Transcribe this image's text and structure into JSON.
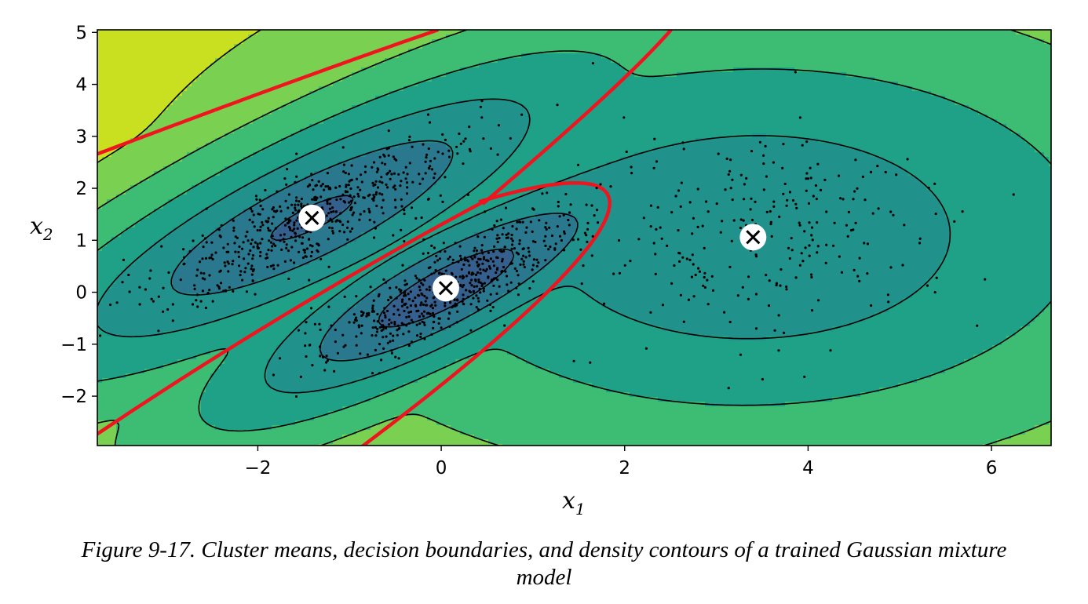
{
  "chart_data": {
    "type": "contour",
    "title": "",
    "xlabel": "x",
    "xlabel_sub": "1",
    "ylabel": "x",
    "ylabel_sub": "2",
    "xlim": [
      -3.75,
      6.65
    ],
    "ylim": [
      -2.95,
      5.05
    ],
    "xticks": [
      {
        "v": -2,
        "label": "−2"
      },
      {
        "v": 0,
        "label": "0"
      },
      {
        "v": 2,
        "label": "2"
      },
      {
        "v": 4,
        "label": "4"
      },
      {
        "v": 6,
        "label": "6"
      }
    ],
    "yticks": [
      {
        "v": 5,
        "label": "5"
      },
      {
        "v": 4,
        "label": "4"
      },
      {
        "v": 3,
        "label": "3"
      },
      {
        "v": 2,
        "label": "2"
      },
      {
        "v": 1,
        "label": "1"
      },
      {
        "v": 0,
        "label": "0"
      },
      {
        "v": -1,
        "label": "−1"
      },
      {
        "v": -2,
        "label": "−2"
      }
    ],
    "cluster_means": [
      {
        "x": -1.41,
        "y": 1.43
      },
      {
        "x": 0.05,
        "y": 0.08
      },
      {
        "x": 3.4,
        "y": 1.06
      }
    ],
    "density_colormap": [
      "#fde725",
      "#c9e020",
      "#7ad151",
      "#3dbc74",
      "#1fa187",
      "#21918c",
      "#2a788e",
      "#355f8d",
      "#414487",
      "#482878"
    ],
    "contour_line_color": "#000000",
    "decision_boundary_color": "#f0141e",
    "decision_boundary_style": "dashed",
    "grid": false,
    "legend": "none"
  },
  "caption": {
    "line1": "Figure 9-17. Cluster means, decision boundaries, and density contours of a trained Gaussian mixture",
    "line2": "model"
  }
}
